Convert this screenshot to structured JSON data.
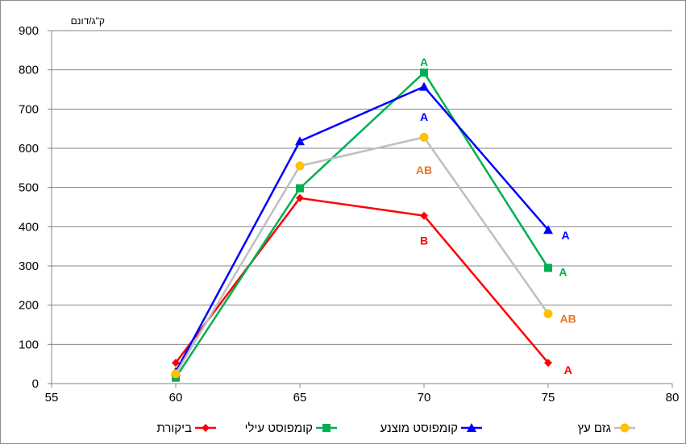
{
  "chart_data": {
    "type": "line",
    "title": "",
    "ylabel": "ק\"ג/דונם",
    "xlabel": "",
    "xlim": [
      55,
      80
    ],
    "ylim": [
      0,
      900
    ],
    "x_ticks": [
      55,
      60,
      65,
      70,
      75,
      80
    ],
    "y_ticks": [
      0,
      100,
      200,
      300,
      400,
      500,
      600,
      700,
      800,
      900
    ],
    "grid": "horizontal",
    "legend_position": "bottom",
    "x": [
      60,
      65,
      70,
      75
    ],
    "series": [
      {
        "name": "ביקורת",
        "color": "#ff0000",
        "marker": "diamond",
        "values": [
          53,
          473,
          428,
          53
        ]
      },
      {
        "name": "קומפוסט עילי",
        "color": "#00b050",
        "marker": "square",
        "values": [
          15,
          498,
          793,
          295
        ]
      },
      {
        "name": "קומפוסט מוצנע",
        "color": "#0000ff",
        "marker": "triangle",
        "values": [
          30,
          618,
          757,
          392
        ]
      },
      {
        "name": "גזם עץ",
        "color": "#bfbfbf",
        "marker_color": "#ffc000",
        "marker": "circle",
        "values": [
          25,
          555,
          628,
          178
        ]
      }
    ],
    "annotations": [
      {
        "text": "A",
        "x": 70,
        "y": 820,
        "color": "#00b050"
      },
      {
        "text": "A",
        "x": 70,
        "y": 680,
        "color": "#0000ff"
      },
      {
        "text": "AB",
        "x": 70,
        "y": 545,
        "color": "#e87722"
      },
      {
        "text": "B",
        "x": 70,
        "y": 365,
        "color": "#ff0000"
      },
      {
        "text": "A",
        "x": 75.7,
        "y": 378,
        "color": "#0000ff"
      },
      {
        "text": "A",
        "x": 75.6,
        "y": 285,
        "color": "#00b050"
      },
      {
        "text": "AB",
        "x": 75.8,
        "y": 165,
        "color": "#e87722"
      },
      {
        "text": "A",
        "x": 75.8,
        "y": 35,
        "color": "#ff0000"
      }
    ]
  }
}
